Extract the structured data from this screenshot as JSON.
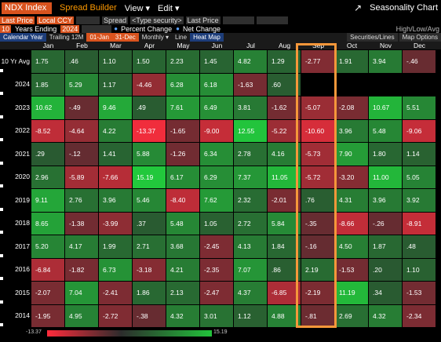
{
  "toolbar": {
    "ticker": "NDX Index",
    "spread_builder": "Spread Builder",
    "view": "View ▾",
    "edit": "Edit ▾",
    "title": "Seasonality Chart"
  },
  "options": {
    "last_price": "Last Price",
    "local_ccy": "Local CCY",
    "spread": "Spread",
    "type_security": "<Type security>",
    "last_price2": "Last Price",
    "years_count": "10",
    "years_ending_label": "Years Ending",
    "years_ending": "2024",
    "percent_change": "Percent Change",
    "net_change": "Net Change",
    "high_low": "High/Low/Avg"
  },
  "tabs": {
    "calendar_year": "Calendar Year",
    "trailing": "Trailing 12M",
    "from": "01-Jan",
    "to": "31-Dec",
    "monthly": "Monthly ▾",
    "line": "Line",
    "heat_map": "Heat Map",
    "securities": "Securities/Lines",
    "map_options": "Map Options"
  },
  "heatmap": {
    "months": [
      "Jan",
      "Feb",
      "Mar",
      "Apr",
      "May",
      "Jun",
      "Jul",
      "Aug",
      "Sep",
      "Oct",
      "Nov",
      "Dec"
    ],
    "rows": [
      {
        "label": "10 Yr Avg",
        "values": [
          "1.75",
          ".46",
          "1.10",
          "1.50",
          "2.23",
          "1.45",
          "4.82",
          "1.29",
          "-2.77",
          "1.91",
          "3.94",
          "-.46"
        ]
      },
      {
        "label": "2024",
        "values": [
          "1.85",
          "5.29",
          "1.17",
          "-4.46",
          "6.28",
          "6.18",
          "-1.63",
          ".60",
          "",
          "",
          "",
          ""
        ]
      },
      {
        "label": "2023",
        "values": [
          "10.62",
          "-.49",
          "9.46",
          ".49",
          "7.61",
          "6.49",
          "3.81",
          "-1.62",
          "-5.07",
          "-2.08",
          "10.67",
          "5.51"
        ]
      },
      {
        "label": "2022",
        "values": [
          "-8.52",
          "-4.64",
          "4.22",
          "-13.37",
          "-1.65",
          "-9.00",
          "12.55",
          "-5.22",
          "-10.60",
          "3.96",
          "5.48",
          "-9.06"
        ]
      },
      {
        "label": "2021",
        "values": [
          ".29",
          "-.12",
          "1.41",
          "5.88",
          "-1.26",
          "6.34",
          "2.78",
          "4.16",
          "-5.73",
          "7.90",
          "1.80",
          "1.14"
        ]
      },
      {
        "label": "2020",
        "values": [
          "2.96",
          "-5.89",
          "-7.66",
          "15.19",
          "6.17",
          "6.29",
          "7.37",
          "11.05",
          "-5.72",
          "-3.20",
          "11.00",
          "5.05"
        ]
      },
      {
        "label": "2019",
        "values": [
          "9.11",
          "2.76",
          "3.96",
          "5.46",
          "-8.40",
          "7.62",
          "2.32",
          "-2.01",
          ".76",
          "4.31",
          "3.96",
          "3.92"
        ]
      },
      {
        "label": "2018",
        "values": [
          "8.65",
          "-1.38",
          "-3.99",
          ".37",
          "5.48",
          "1.05",
          "2.72",
          "5.84",
          "-.35",
          "-8.66",
          "-.26",
          "-8.91"
        ]
      },
      {
        "label": "2017",
        "values": [
          "5.20",
          "4.17",
          "1.99",
          "2.71",
          "3.68",
          "-2.45",
          "4.13",
          "1.84",
          "-.16",
          "4.50",
          "1.87",
          ".48"
        ]
      },
      {
        "label": "2016",
        "values": [
          "-6.84",
          "-1.82",
          "6.73",
          "-3.18",
          "4.21",
          "-2.35",
          "7.07",
          ".86",
          "2.19",
          "-1.53",
          ".20",
          "1.10"
        ]
      },
      {
        "label": "2015",
        "values": [
          "-2.07",
          "7.04",
          "-2.41",
          "1.86",
          "2.13",
          "-2.47",
          "4.37",
          "-6.85",
          "-2.19",
          "11.19",
          ".34",
          "-1.53"
        ]
      },
      {
        "label": "2014",
        "values": [
          "-1.95",
          "4.95",
          "-2.72",
          "-.38",
          "4.32",
          "3.01",
          "1.12",
          "4.88",
          "-.81",
          "2.69",
          "4.32",
          "-2.34"
        ]
      }
    ],
    "legend_min": "-13.37",
    "legend_max": "15.19",
    "highlighted_month": "Sep"
  }
}
